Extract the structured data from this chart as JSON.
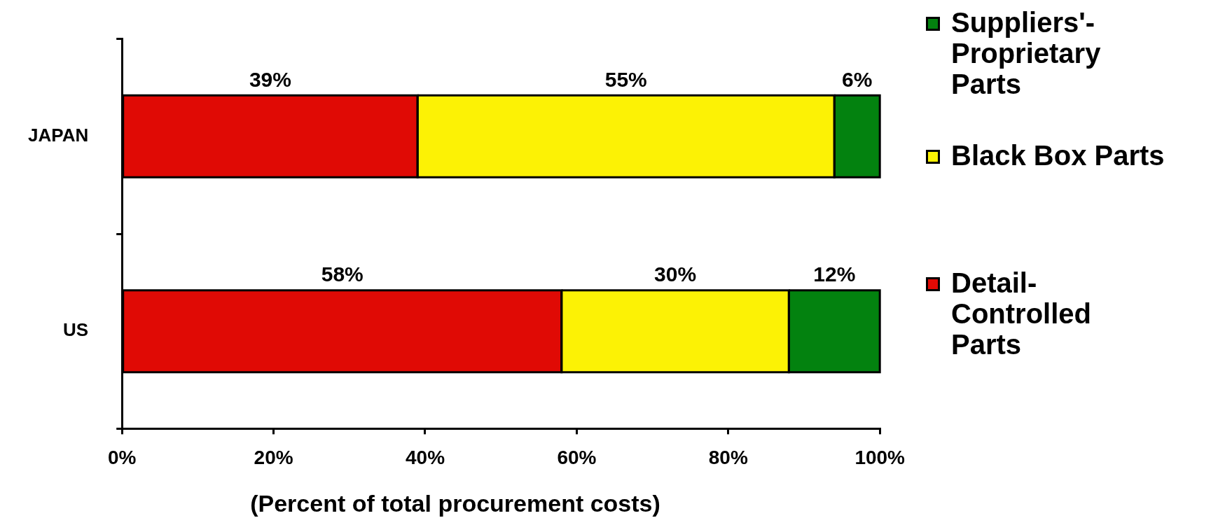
{
  "chart_data": {
    "type": "bar",
    "orientation": "horizontal",
    "stacked": true,
    "categories": [
      "JAPAN",
      "US"
    ],
    "series": [
      {
        "name": "Detail-Controlled Parts",
        "color": "#e00a05",
        "values": [
          39,
          58
        ],
        "value_labels": [
          "39%",
          "58%"
        ]
      },
      {
        "name": "Black Box Parts",
        "color": "#fcf205",
        "values": [
          55,
          30
        ],
        "value_labels": [
          "55%",
          "30%"
        ]
      },
      {
        "name": "Suppliers'-Proprietary Parts",
        "color": "#03820f",
        "values": [
          6,
          12
        ],
        "value_labels": [
          "6%",
          "12%"
        ]
      }
    ],
    "xlim": [
      0,
      100
    ],
    "xticks": [
      {
        "value": 0,
        "label": "0%"
      },
      {
        "value": 20,
        "label": "20%"
      },
      {
        "value": 40,
        "label": "40%"
      },
      {
        "value": 60,
        "label": "60%"
      },
      {
        "value": 80,
        "label": "80%"
      },
      {
        "value": 100,
        "label": "100%"
      }
    ],
    "xlabel": "(Percent of total procurement costs)",
    "legend": "right",
    "grid": false
  }
}
